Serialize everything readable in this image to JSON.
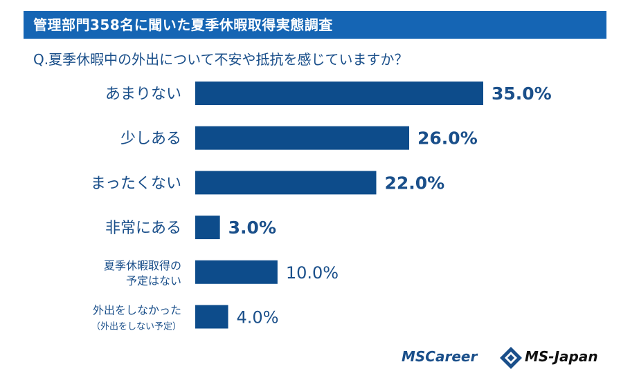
{
  "header": {
    "banner": "管理部門358名に聞いた夏季休暇取得実態調査",
    "question": "Q.夏季休暇中の外出について不安や抵抗を感じていますか？"
  },
  "logos": {
    "left": "MSCareer",
    "right": "MS-Japan",
    "icon": "ms-japan-diamond-logo-icon"
  },
  "colors": {
    "bar": "#0d4c8b",
    "banner": "#1565b4",
    "label": "#1a4f8a"
  },
  "chart_data": {
    "type": "bar",
    "orientation": "horizontal",
    "categories": [
      [
        "あまりない"
      ],
      [
        "少しある"
      ],
      [
        "まったくない"
      ],
      [
        "非常にある"
      ],
      [
        "夏季休暇取得の",
        "予定はない"
      ],
      [
        "外出をしなかった",
        "（外出をしない予定）"
      ]
    ],
    "values": [
      35.0,
      26.0,
      22.0,
      3.0,
      10.0,
      4.0
    ],
    "value_labels": [
      "35.0%",
      "26.0%",
      "22.0%",
      "3.0%",
      "10.0%",
      "4.0%"
    ],
    "xlim": [
      0,
      35
    ],
    "grid": false,
    "legend": "none"
  }
}
